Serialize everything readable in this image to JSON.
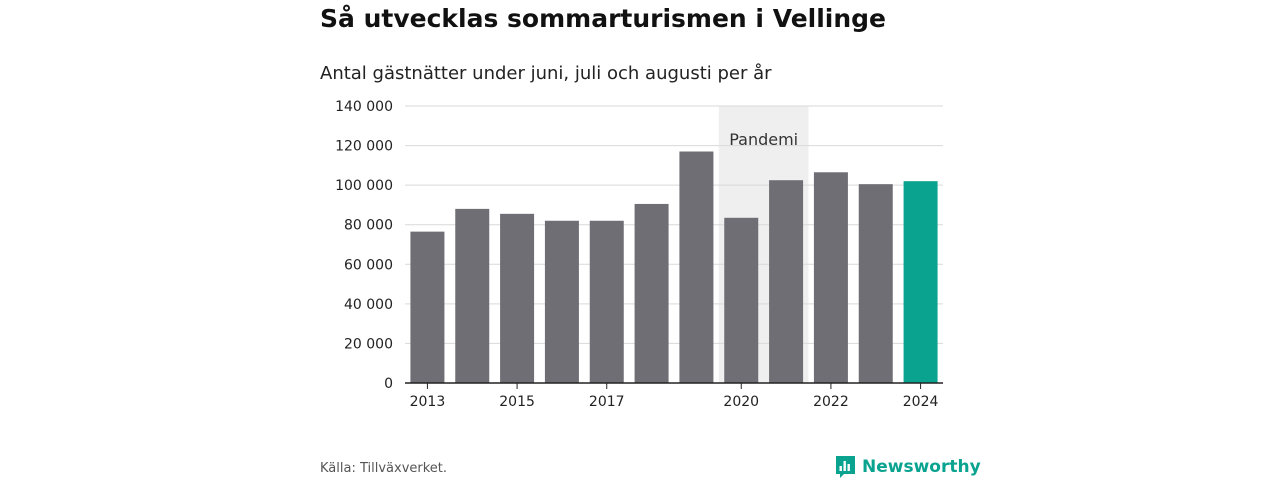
{
  "header": {
    "title": "Så utvecklas sommarturismen i Vellinge",
    "subtitle": "Antal gästnätter under juni, juli och augusti per år"
  },
  "footer": {
    "source": "Källa: Tillväxverket.",
    "brand": "Newsworthy",
    "brand_icon": "newsworthy-chart-icon"
  },
  "colors": {
    "bar": "#6f6e75",
    "highlight": "#0aa390",
    "band": "#efefef",
    "grid": "#d9d9d9",
    "axis": "#222222"
  },
  "chart_data": {
    "type": "bar",
    "categories": [
      "2013",
      "2014",
      "2015",
      "2016",
      "2017",
      "2018",
      "2019",
      "2020",
      "2021",
      "2022",
      "2023",
      "2024"
    ],
    "values": [
      76500,
      88000,
      85500,
      82000,
      82000,
      90500,
      117000,
      83500,
      102500,
      106500,
      100500,
      102000
    ],
    "highlight_category": "2024",
    "x_tick_labels": [
      "2013",
      "2015",
      "2017",
      "2020",
      "2022",
      "2024"
    ],
    "y_ticks": [
      0,
      20000,
      40000,
      60000,
      80000,
      100000,
      120000,
      140000
    ],
    "y_tick_labels": [
      "0",
      "20 000",
      "40 000",
      "60 000",
      "80 000",
      "100 000",
      "120 000",
      "140 000"
    ],
    "ylim": [
      0,
      140000
    ],
    "grid": true,
    "annotation": {
      "label": "Pandemi",
      "range": [
        "2020",
        "2021"
      ]
    }
  }
}
